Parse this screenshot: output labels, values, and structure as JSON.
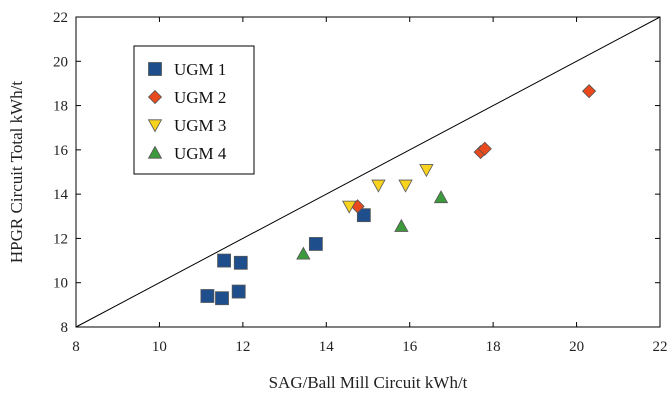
{
  "chart_data": {
    "type": "scatter",
    "title": "",
    "xlabel": "SAG/Ball Mill Circuit kWh/t",
    "ylabel": "HPGR Circuit Total kWh/t",
    "xlim": [
      8,
      22
    ],
    "ylim": [
      8,
      22
    ],
    "x_ticks": [
      "8",
      "10",
      "12",
      "14",
      "16",
      "18",
      "20",
      "22"
    ],
    "y_ticks": [
      "8",
      "10",
      "12",
      "14",
      "16",
      "18",
      "20",
      "22"
    ],
    "grid": false,
    "legend_position": "top-left",
    "reference_line": {
      "from": [
        8,
        8
      ],
      "to": [
        22,
        22
      ]
    },
    "series": [
      {
        "name": "UGM 1",
        "marker": "square",
        "color": "#1f4e8c",
        "points": [
          {
            "x": 11.15,
            "y": 9.4
          },
          {
            "x": 11.5,
            "y": 9.3
          },
          {
            "x": 11.9,
            "y": 9.6
          },
          {
            "x": 11.55,
            "y": 11.0
          },
          {
            "x": 11.95,
            "y": 10.9
          },
          {
            "x": 13.75,
            "y": 11.75
          },
          {
            "x": 14.9,
            "y": 13.05
          }
        ]
      },
      {
        "name": "UGM 2",
        "marker": "diamond",
        "color": "#e8491d",
        "points": [
          {
            "x": 14.75,
            "y": 13.45
          },
          {
            "x": 17.7,
            "y": 15.9
          },
          {
            "x": 17.8,
            "y": 16.05
          },
          {
            "x": 20.3,
            "y": 18.65
          }
        ]
      },
      {
        "name": "UGM 3",
        "marker": "triangle-down",
        "color": "#f7d21e",
        "points": [
          {
            "x": 14.55,
            "y": 13.45
          },
          {
            "x": 15.25,
            "y": 14.4
          },
          {
            "x": 15.9,
            "y": 14.4
          },
          {
            "x": 16.4,
            "y": 15.1
          }
        ]
      },
      {
        "name": "UGM 4",
        "marker": "triangle-up",
        "color": "#3c9a3c",
        "points": [
          {
            "x": 13.45,
            "y": 11.3
          },
          {
            "x": 15.8,
            "y": 12.55
          },
          {
            "x": 16.75,
            "y": 13.85
          }
        ]
      }
    ]
  }
}
